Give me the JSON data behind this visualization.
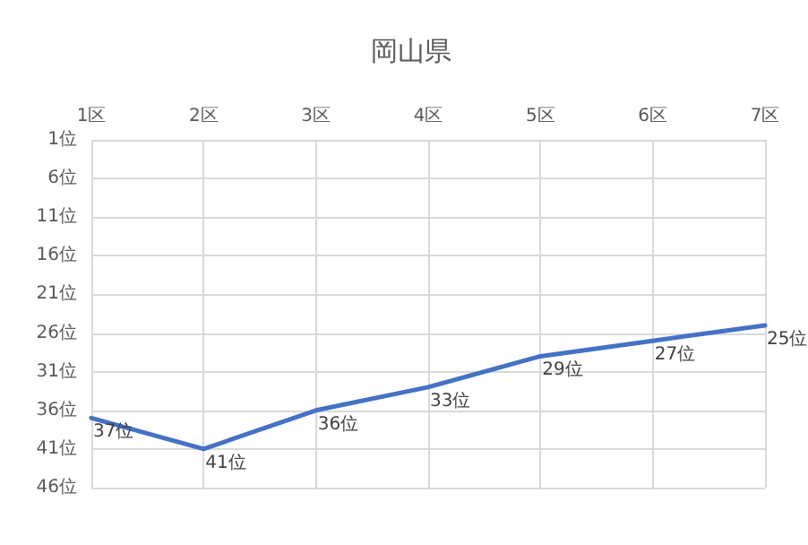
{
  "chart_data": {
    "type": "line",
    "title": "岡山県",
    "categories": [
      "1区",
      "2区",
      "3区",
      "4区",
      "5区",
      "6区",
      "7区"
    ],
    "series": [
      {
        "color": "#4472c4",
        "values": [
          37,
          41,
          36,
          33,
          29,
          27,
          25
        ],
        "value_labels": [
          "37位",
          "41位",
          "36位",
          "33位",
          "29位",
          "27位",
          "25位"
        ]
      }
    ],
    "ylim": [
      46,
      1
    ],
    "yticks": [
      {
        "value": 1,
        "label": "1位"
      },
      {
        "value": 6,
        "label": "6位"
      },
      {
        "value": 11,
        "label": "11位"
      },
      {
        "value": 16,
        "label": "16位"
      },
      {
        "value": 21,
        "label": "21位"
      },
      {
        "value": 26,
        "label": "26位"
      },
      {
        "value": 31,
        "label": "31位"
      },
      {
        "value": 36,
        "label": "36位"
      },
      {
        "value": 41,
        "label": "41位"
      },
      {
        "value": 46,
        "label": "46位"
      }
    ],
    "grid": true,
    "marker": "none",
    "line_style": "solid"
  }
}
